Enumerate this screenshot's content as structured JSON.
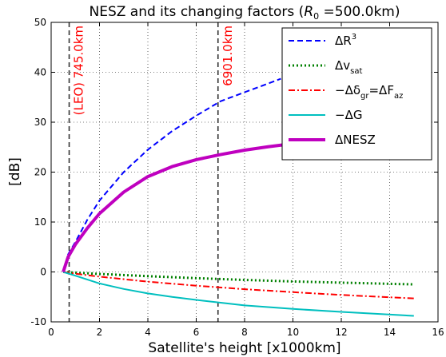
{
  "chart_data": {
    "type": "line",
    "title": {
      "prefix": "NESZ and its changing factors (",
      "symbol": "R",
      "subscript": "0",
      "suffix": " =500.0km)"
    },
    "xlabel": "Satellite's height [x1000km]",
    "ylabel": "[dB]",
    "xlim": [
      0,
      16
    ],
    "ylim": [
      -10,
      50
    ],
    "xticks": [
      0,
      2,
      4,
      6,
      8,
      10,
      12,
      14,
      16
    ],
    "yticks": [
      -10,
      0,
      10,
      20,
      30,
      40,
      50
    ],
    "grid": true,
    "legend_position": "top-right",
    "vlines": [
      {
        "x": 0.745,
        "label": "(LEO) 745.0km",
        "color": "#ff0000"
      },
      {
        "x": 6.901,
        "label": "6901.0km",
        "color": "#ff0000"
      }
    ],
    "series": [
      {
        "name": "ΔR³",
        "legend_main": "ΔR",
        "legend_sup": "3",
        "legend_sub": "",
        "legend_tail": "",
        "color": "#0000ff",
        "style": "dashed",
        "width": 2,
        "x": [
          0.5,
          0.7,
          1,
          1.5,
          2,
          3,
          4,
          5,
          6,
          7,
          8,
          9,
          9.5
        ],
        "y": [
          0,
          3.5,
          6.0,
          10.5,
          14.3,
          20.0,
          24.5,
          28.2,
          31.3,
          34.2,
          36.0,
          37.8,
          38.7
        ]
      },
      {
        "name": "Δv_sat",
        "legend_main": "Δv",
        "legend_sup": "",
        "legend_sub": "sat",
        "legend_tail": "",
        "color": "#008000",
        "style": "dotted",
        "width": 3,
        "x": [
          0.5,
          1,
          2,
          4,
          6,
          8,
          10,
          12,
          15
        ],
        "y": [
          0,
          -0.15,
          -0.4,
          -0.85,
          -1.25,
          -1.6,
          -1.9,
          -2.15,
          -2.5
        ]
      },
      {
        "name": "−Δδ_gr=ΔF_az",
        "legend_main": "−Δδ",
        "legend_sup": "",
        "legend_sub": "gr",
        "legend_tail": "=ΔF",
        "legend_tail_sub": "az",
        "color": "#ff0000",
        "style": "dashdot",
        "width": 2,
        "x": [
          0.5,
          1,
          2,
          4,
          6,
          8,
          10,
          12,
          15
        ],
        "y": [
          0,
          -0.35,
          -0.95,
          -1.95,
          -2.75,
          -3.45,
          -4.05,
          -4.6,
          -5.3
        ]
      },
      {
        "name": "−ΔG",
        "legend_main": "−ΔG",
        "legend_sup": "",
        "legend_sub": "",
        "legend_tail": "",
        "color": "#00bfbf",
        "style": "solid",
        "width": 2,
        "x": [
          0.5,
          1,
          2,
          3,
          4,
          5,
          6,
          8,
          10,
          12,
          15
        ],
        "y": [
          0,
          -0.75,
          -2.3,
          -3.4,
          -4.3,
          -5.0,
          -5.6,
          -6.7,
          -7.4,
          -8.0,
          -8.8
        ]
      },
      {
        "name": "ΔNESZ",
        "legend_main": "ΔNESZ",
        "legend_sup": "",
        "legend_sub": "",
        "legend_tail": "",
        "color": "#bf00bf",
        "style": "solid",
        "width": 4,
        "x": [
          0.5,
          0.7,
          1,
          1.5,
          2,
          3,
          4,
          5,
          6,
          7,
          8,
          9,
          10,
          11
        ],
        "y": [
          0,
          3.0,
          5.5,
          8.8,
          11.7,
          16.0,
          19.1,
          21.1,
          22.5,
          23.5,
          24.4,
          25.1,
          25.7,
          26.2
        ]
      }
    ]
  }
}
